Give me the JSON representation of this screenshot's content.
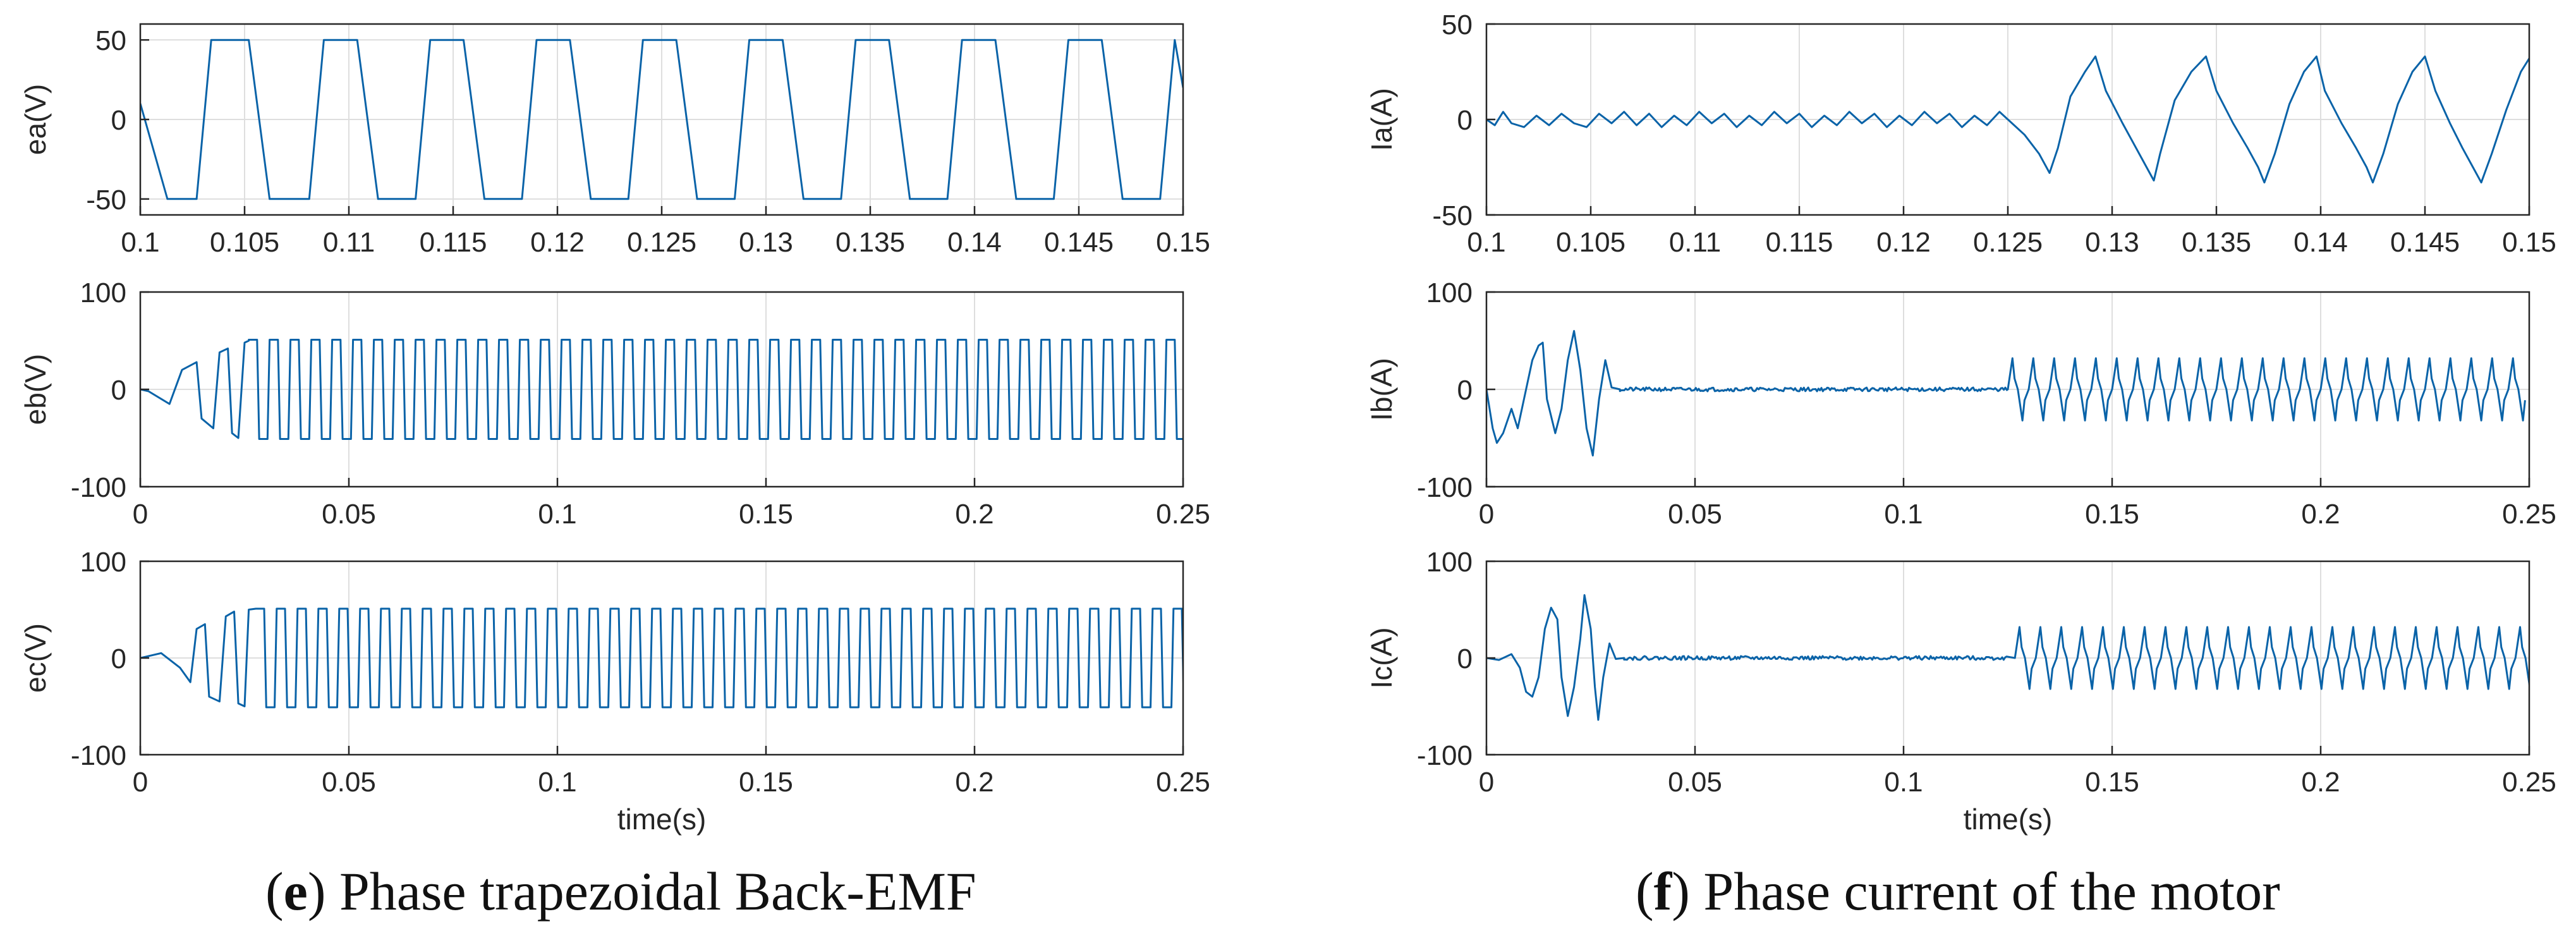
{
  "colors": {
    "line": "#0a63a8",
    "grid": "#dedede",
    "axis": "#262626"
  },
  "chart_data": [
    {
      "id": "ea",
      "type": "line",
      "ylabel": "ea(V)",
      "xlabel": "",
      "xlim": [
        0.1,
        0.15
      ],
      "ylim": [
        -60,
        60
      ],
      "xticks": [
        0.1,
        0.105,
        0.11,
        0.115,
        0.12,
        0.125,
        0.13,
        0.135,
        0.14,
        0.145,
        0.15
      ],
      "xtick_labels": [
        "0.1",
        "0.105",
        "0.11",
        "0.115",
        "0.12",
        "0.125",
        "0.13",
        "0.135",
        "0.14",
        "0.145",
        "0.15"
      ],
      "yticks": [
        -50,
        0,
        50
      ],
      "ytick_labels": [
        "-50",
        "0",
        "50"
      ],
      "series": [
        {
          "name": "ea",
          "points": [
            [
              0.1,
              10
            ],
            [
              0.1013,
              -50
            ],
            [
              0.1027,
              -50
            ],
            [
              0.1034,
              50
            ],
            [
              0.1052,
              50
            ],
            [
              0.1062,
              -50
            ],
            [
              0.1081,
              -50
            ],
            [
              0.1088,
              50
            ],
            [
              0.1104,
              50
            ],
            [
              0.1114,
              -50
            ],
            [
              0.1132,
              -50
            ],
            [
              0.1139,
              50
            ],
            [
              0.1155,
              50
            ],
            [
              0.1165,
              -50
            ],
            [
              0.1183,
              -50
            ],
            [
              0.119,
              50
            ],
            [
              0.1206,
              50
            ],
            [
              0.1216,
              -50
            ],
            [
              0.1234,
              -50
            ],
            [
              0.1241,
              50
            ],
            [
              0.1257,
              50
            ],
            [
              0.1267,
              -50
            ],
            [
              0.1285,
              -50
            ],
            [
              0.1292,
              50
            ],
            [
              0.1308,
              50
            ],
            [
              0.1318,
              -50
            ],
            [
              0.1336,
              -50
            ],
            [
              0.1343,
              50
            ],
            [
              0.1359,
              50
            ],
            [
              0.1369,
              -50
            ],
            [
              0.1387,
              -50
            ],
            [
              0.1394,
              50
            ],
            [
              0.141,
              50
            ],
            [
              0.142,
              -50
            ],
            [
              0.1438,
              -50
            ],
            [
              0.1445,
              50
            ],
            [
              0.1461,
              50
            ],
            [
              0.1471,
              -50
            ],
            [
              0.1489,
              -50
            ],
            [
              0.1496,
              50
            ],
            [
              0.15,
              20
            ]
          ]
        }
      ]
    },
    {
      "id": "eb",
      "type": "line",
      "ylabel": "eb(V)",
      "xlabel": "",
      "xlim": [
        0,
        0.25
      ],
      "ylim": [
        -100,
        100
      ],
      "xticks": [
        0,
        0.05,
        0.1,
        0.15,
        0.2,
        0.25
      ],
      "xtick_labels": [
        "0",
        "0.05",
        "0.1",
        "0.15",
        "0.2",
        "0.25"
      ],
      "yticks": [
        -100,
        0,
        100
      ],
      "ytick_labels": [
        "-100",
        "0",
        "100"
      ],
      "series": [
        {
          "name": "eb",
          "points": [
            [
              0,
              0
            ],
            [
              0.002,
              -2
            ],
            [
              0.007,
              -15
            ],
            [
              0.01,
              20
            ],
            [
              0.0135,
              28
            ],
            [
              0.0147,
              -30
            ],
            [
              0.0175,
              -40
            ],
            [
              0.019,
              38
            ],
            [
              0.021,
              42
            ],
            [
              0.022,
              -45
            ],
            [
              0.0235,
              -50
            ],
            [
              0.025,
              48
            ],
            [
              0.026,
              50
            ]
          ],
          "steady": {
            "t_start": 0.026,
            "t_end": 0.25,
            "amplitude": 51,
            "period": 0.005
          }
        }
      ]
    },
    {
      "id": "ec",
      "type": "line",
      "ylabel": "ec(V)",
      "xlabel": "time(s)",
      "xlim": [
        0,
        0.25
      ],
      "ylim": [
        -100,
        100
      ],
      "xticks": [
        0,
        0.05,
        0.1,
        0.15,
        0.2,
        0.25
      ],
      "xtick_labels": [
        "0",
        "0.05",
        "0.1",
        "0.15",
        "0.2",
        "0.25"
      ],
      "yticks": [
        -100,
        0,
        100
      ],
      "ytick_labels": [
        "-100",
        "0",
        "100"
      ],
      "series": [
        {
          "name": "ec",
          "points": [
            [
              0,
              0
            ],
            [
              0.002,
              2
            ],
            [
              0.005,
              5
            ],
            [
              0.0095,
              -10
            ],
            [
              0.012,
              -25
            ],
            [
              0.0135,
              30
            ],
            [
              0.0155,
              35
            ],
            [
              0.0165,
              -40
            ],
            [
              0.019,
              -45
            ],
            [
              0.0205,
              43
            ],
            [
              0.0225,
              48
            ],
            [
              0.0235,
              -47
            ],
            [
              0.025,
              -50
            ],
            [
              0.026,
              50
            ]
          ],
          "steady": {
            "t_start": 0.026,
            "t_end": 0.25,
            "amplitude": 51,
            "period": 0.005,
            "phase": 0.0017
          }
        }
      ]
    },
    {
      "id": "ia",
      "type": "line",
      "ylabel": "Ia(A)",
      "xlabel": "",
      "xlim": [
        0.1,
        0.15
      ],
      "ylim": [
        -50,
        50
      ],
      "xticks": [
        0.1,
        0.105,
        0.11,
        0.115,
        0.12,
        0.125,
        0.13,
        0.135,
        0.14,
        0.145,
        0.15
      ],
      "xtick_labels": [
        "0.1",
        "0.105",
        "0.11",
        "0.115",
        "0.12",
        "0.125",
        "0.13",
        "0.135",
        "0.14",
        "0.145",
        "0.15"
      ],
      "yticks": [
        -50,
        0,
        50
      ],
      "ytick_labels": [
        "-50",
        "0",
        "50"
      ],
      "series": [
        {
          "name": "Ia",
          "points": [
            [
              0.1,
              0
            ],
            [
              0.1004,
              -3
            ],
            [
              0.1008,
              4
            ],
            [
              0.1012,
              -2
            ],
            [
              0.1018,
              -4
            ],
            [
              0.1024,
              2
            ],
            [
              0.103,
              -3
            ],
            [
              0.1036,
              3
            ],
            [
              0.1042,
              -2
            ],
            [
              0.1048,
              -4
            ],
            [
              0.1054,
              3
            ],
            [
              0.106,
              -2
            ],
            [
              0.1066,
              4
            ],
            [
              0.1072,
              -3
            ],
            [
              0.1078,
              3
            ],
            [
              0.1084,
              -4
            ],
            [
              0.109,
              2
            ],
            [
              0.1096,
              -3
            ],
            [
              0.1102,
              4
            ],
            [
              0.1108,
              -2
            ],
            [
              0.1114,
              3
            ],
            [
              0.112,
              -4
            ],
            [
              0.1126,
              2
            ],
            [
              0.1132,
              -3
            ],
            [
              0.1138,
              4
            ],
            [
              0.1144,
              -2
            ],
            [
              0.115,
              3
            ],
            [
              0.1156,
              -4
            ],
            [
              0.1162,
              2
            ],
            [
              0.1168,
              -3
            ],
            [
              0.1174,
              4
            ],
            [
              0.118,
              -2
            ],
            [
              0.1186,
              3
            ],
            [
              0.1192,
              -4
            ],
            [
              0.1198,
              2
            ],
            [
              0.1204,
              -3
            ],
            [
              0.121,
              4
            ],
            [
              0.1216,
              -2
            ],
            [
              0.1222,
              3
            ],
            [
              0.1228,
              -4
            ],
            [
              0.1234,
              2
            ],
            [
              0.124,
              -3
            ],
            [
              0.1246,
              4
            ],
            [
              0.1252,
              -2
            ],
            [
              0.1258,
              -8
            ],
            [
              0.1265,
              -18
            ],
            [
              0.127,
              -28
            ],
            [
              0.1274,
              -15
            ],
            [
              0.128,
              12
            ],
            [
              0.1287,
              25
            ],
            [
              0.1292,
              33
            ],
            [
              0.1297,
              15
            ],
            [
              0.1305,
              -2
            ],
            [
              0.131,
              -12
            ],
            [
              0.1315,
              -22
            ],
            [
              0.132,
              -32
            ],
            [
              0.1323,
              -18
            ],
            [
              0.133,
              10
            ],
            [
              0.1338,
              25
            ],
            [
              0.1345,
              33
            ],
            [
              0.135,
              15
            ],
            [
              0.1358,
              -2
            ],
            [
              0.1365,
              -15
            ],
            [
              0.137,
              -25
            ],
            [
              0.1373,
              -33
            ],
            [
              0.1378,
              -18
            ],
            [
              0.1385,
              8
            ],
            [
              0.1392,
              25
            ],
            [
              0.1398,
              33
            ],
            [
              0.1402,
              15
            ],
            [
              0.141,
              -2
            ],
            [
              0.1417,
              -15
            ],
            [
              0.1422,
              -25
            ],
            [
              0.1425,
              -33
            ],
            [
              0.143,
              -18
            ],
            [
              0.1437,
              8
            ],
            [
              0.1444,
              25
            ],
            [
              0.145,
              33
            ],
            [
              0.1455,
              15
            ],
            [
              0.1462,
              -2
            ],
            [
              0.1468,
              -15
            ],
            [
              0.1473,
              -25
            ],
            [
              0.1477,
              -33
            ],
            [
              0.1482,
              -18
            ],
            [
              0.1489,
              5
            ],
            [
              0.1496,
              25
            ],
            [
              0.15,
              32
            ]
          ]
        }
      ]
    },
    {
      "id": "ib",
      "type": "line",
      "ylabel": "Ib(A)",
      "xlabel": "",
      "xlim": [
        0,
        0.25
      ],
      "ylim": [
        -100,
        100
      ],
      "xticks": [
        0,
        0.05,
        0.1,
        0.15,
        0.2,
        0.25
      ],
      "xtick_labels": [
        "0",
        "0.05",
        "0.1",
        "0.15",
        "0.2",
        "0.25"
      ],
      "yticks": [
        -100,
        0,
        100
      ],
      "ytick_labels": [
        "-100",
        "0",
        "100"
      ],
      "series": [
        {
          "name": "Ib",
          "points": [
            [
              0,
              0
            ],
            [
              0.0015,
              -40
            ],
            [
              0.0025,
              -55
            ],
            [
              0.004,
              -45
            ],
            [
              0.006,
              -20
            ],
            [
              0.0075,
              -40
            ],
            [
              0.009,
              -10
            ],
            [
              0.011,
              30
            ],
            [
              0.0125,
              45
            ],
            [
              0.0135,
              48
            ],
            [
              0.0145,
              -10
            ],
            [
              0.0165,
              -45
            ],
            [
              0.018,
              -20
            ],
            [
              0.0195,
              30
            ],
            [
              0.021,
              60
            ],
            [
              0.0225,
              20
            ],
            [
              0.024,
              -40
            ],
            [
              0.0255,
              -68
            ],
            [
              0.027,
              -10
            ],
            [
              0.0285,
              30
            ],
            [
              0.03,
              2
            ],
            [
              0.032,
              0
            ]
          ],
          "noise": {
            "t_start": 0.032,
            "t_end": 0.125,
            "amplitude": 2
          },
          "steady": {
            "t_start": 0.125,
            "t_end": 0.25,
            "amplitude": 32,
            "period": 0.005,
            "shape": "sawtooth"
          }
        }
      ]
    },
    {
      "id": "ic",
      "type": "line",
      "ylabel": "Ic(A)",
      "xlabel": "time(s)",
      "xlim": [
        0,
        0.25
      ],
      "ylim": [
        -100,
        100
      ],
      "xticks": [
        0,
        0.05,
        0.1,
        0.15,
        0.2,
        0.25
      ],
      "xtick_labels": [
        "0",
        "0.05",
        "0.1",
        "0.15",
        "0.2",
        "0.25"
      ],
      "yticks": [
        -100,
        0,
        100
      ],
      "ytick_labels": [
        "-100",
        "0",
        "100"
      ],
      "series": [
        {
          "name": "Ic",
          "points": [
            [
              0,
              0
            ],
            [
              0.003,
              -2
            ],
            [
              0.006,
              4
            ],
            [
              0.008,
              -10
            ],
            [
              0.0095,
              -35
            ],
            [
              0.011,
              -40
            ],
            [
              0.0125,
              -20
            ],
            [
              0.014,
              30
            ],
            [
              0.0155,
              52
            ],
            [
              0.017,
              40
            ],
            [
              0.018,
              -20
            ],
            [
              0.0195,
              -60
            ],
            [
              0.021,
              -30
            ],
            [
              0.0225,
              20
            ],
            [
              0.0235,
              65
            ],
            [
              0.025,
              30
            ],
            [
              0.026,
              -30
            ],
            [
              0.0268,
              -64
            ],
            [
              0.028,
              -20
            ],
            [
              0.0295,
              15
            ],
            [
              0.031,
              -1
            ],
            [
              0.033,
              0
            ]
          ],
          "noise": {
            "t_start": 0.033,
            "t_end": 0.125,
            "amplitude": 2
          },
          "steady": {
            "t_start": 0.125,
            "t_end": 0.25,
            "amplitude": 32,
            "period": 0.005,
            "shape": "sawtooth",
            "phase": 0.0017
          }
        }
      ]
    }
  ],
  "captions": {
    "left": {
      "letter": "e",
      "text": " Phase trapezoidal Back-EMF"
    },
    "right": {
      "letter": "f",
      "text": " Phase current of the motor"
    }
  }
}
